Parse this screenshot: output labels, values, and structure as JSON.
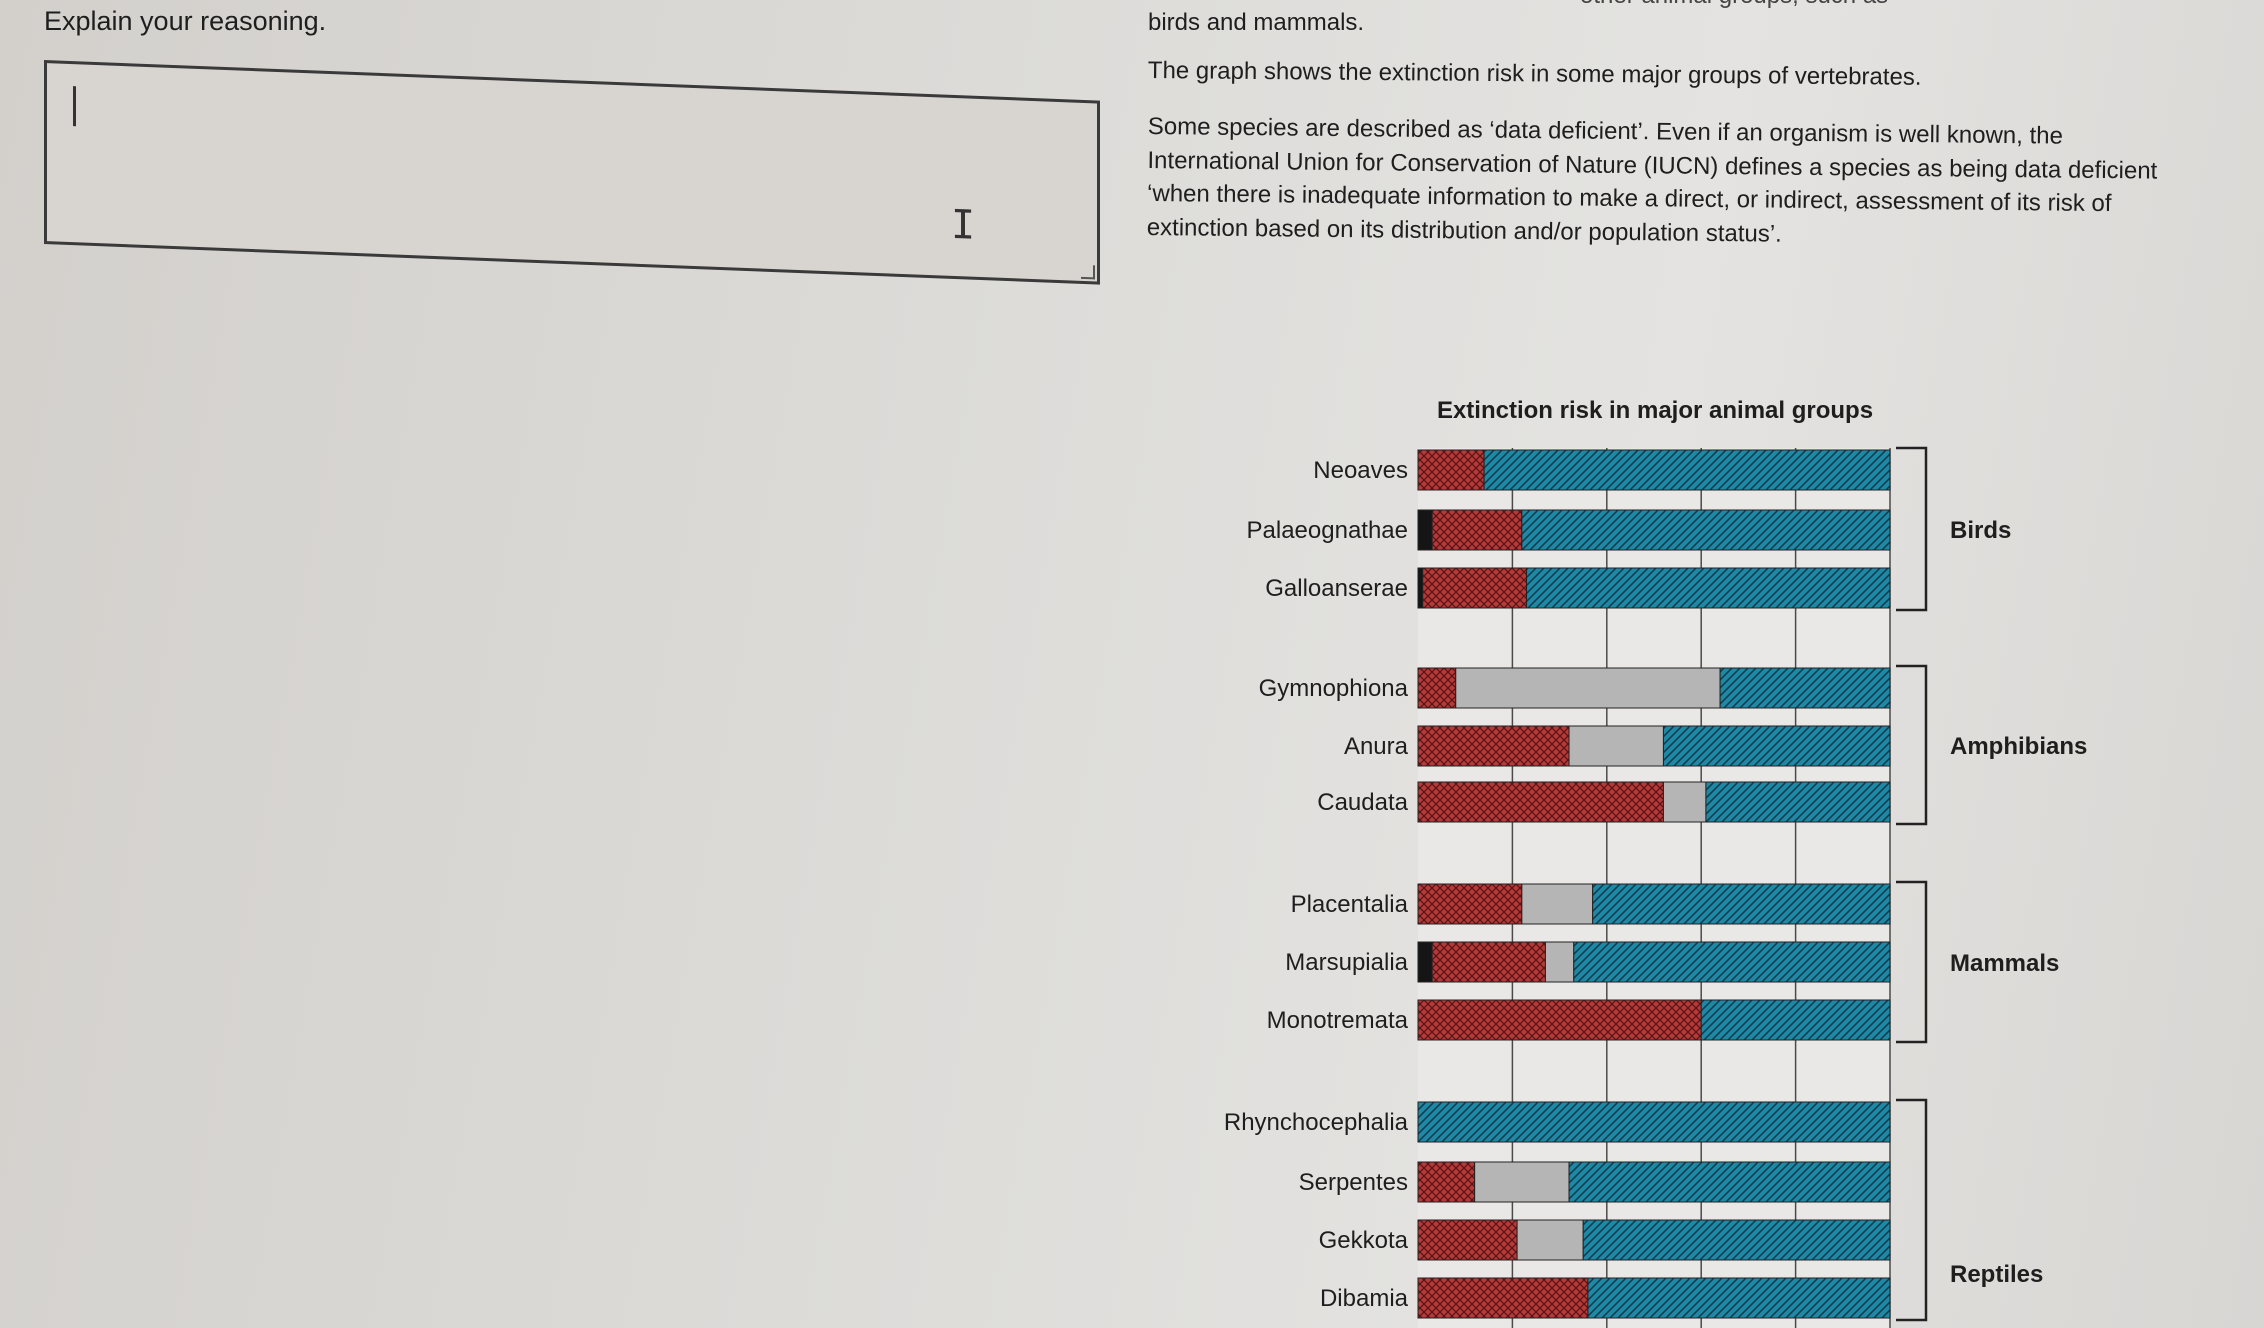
{
  "prompt": "Explain your reasoning.",
  "answer": {
    "value": ""
  },
  "top_cut_text": "other animal groups, such as",
  "text": {
    "line1": "birds and mammals.",
    "line2": "The graph shows the extinction risk in some major groups of vertebrates.",
    "para2": "Some species are described as ‘data deficient’. Even if an organism is well known, the International Union for Conservation of Nature (IUCN) defines a species as being data deficient ‘when there is inadequate information to make a direct, or indirect, assessment of its risk of extinction based on its distribution and/or population status’."
  },
  "colors": {
    "extinct": "#151515",
    "threatened": "#b73a3a",
    "data_deficient": "#b5b5b5",
    "not_threatened": "#1f88a4"
  },
  "chart_data": {
    "type": "bar",
    "orientation": "horizontal",
    "stacked": true,
    "title": "Extinction risk in major animal groups",
    "xlim": [
      0,
      100
    ],
    "categories": [
      "Neoaves",
      "Palaeognathae",
      "Galloanserae",
      "Gymnophiona",
      "Anura",
      "Caudata",
      "Placentalia",
      "Marsupialia",
      "Monotremata",
      "Rhynchocephalia",
      "Serpentes",
      "Gekkota",
      "Dibamia"
    ],
    "groups": [
      {
        "name": "Birds",
        "members": [
          "Neoaves",
          "Palaeognathae",
          "Galloanserae"
        ]
      },
      {
        "name": "Amphibians",
        "members": [
          "Gymnophiona",
          "Anura",
          "Caudata"
        ]
      },
      {
        "name": "Mammals",
        "members": [
          "Placentalia",
          "Marsupialia",
          "Monotremata"
        ]
      },
      {
        "name": "Reptiles",
        "members": [
          "Rhynchocephalia",
          "Serpentes",
          "Gekkota",
          "Dibamia"
        ]
      }
    ],
    "series": [
      {
        "values": [
          0,
          3,
          1,
          0,
          0,
          0,
          0,
          3,
          0,
          0,
          0,
          0,
          0
        ]
      },
      {
        "values": [
          14,
          19,
          22,
          8,
          32,
          52,
          22,
          24,
          60,
          0,
          12,
          21,
          36
        ]
      },
      {
        "values": [
          0,
          0,
          0,
          56,
          20,
          9,
          15,
          6,
          0,
          0,
          20,
          14,
          0
        ]
      },
      {
        "values": [
          86,
          78,
          77,
          36,
          48,
          39,
          63,
          67,
          40,
          100,
          68,
          65,
          64
        ]
      }
    ],
    "grid": true
  }
}
